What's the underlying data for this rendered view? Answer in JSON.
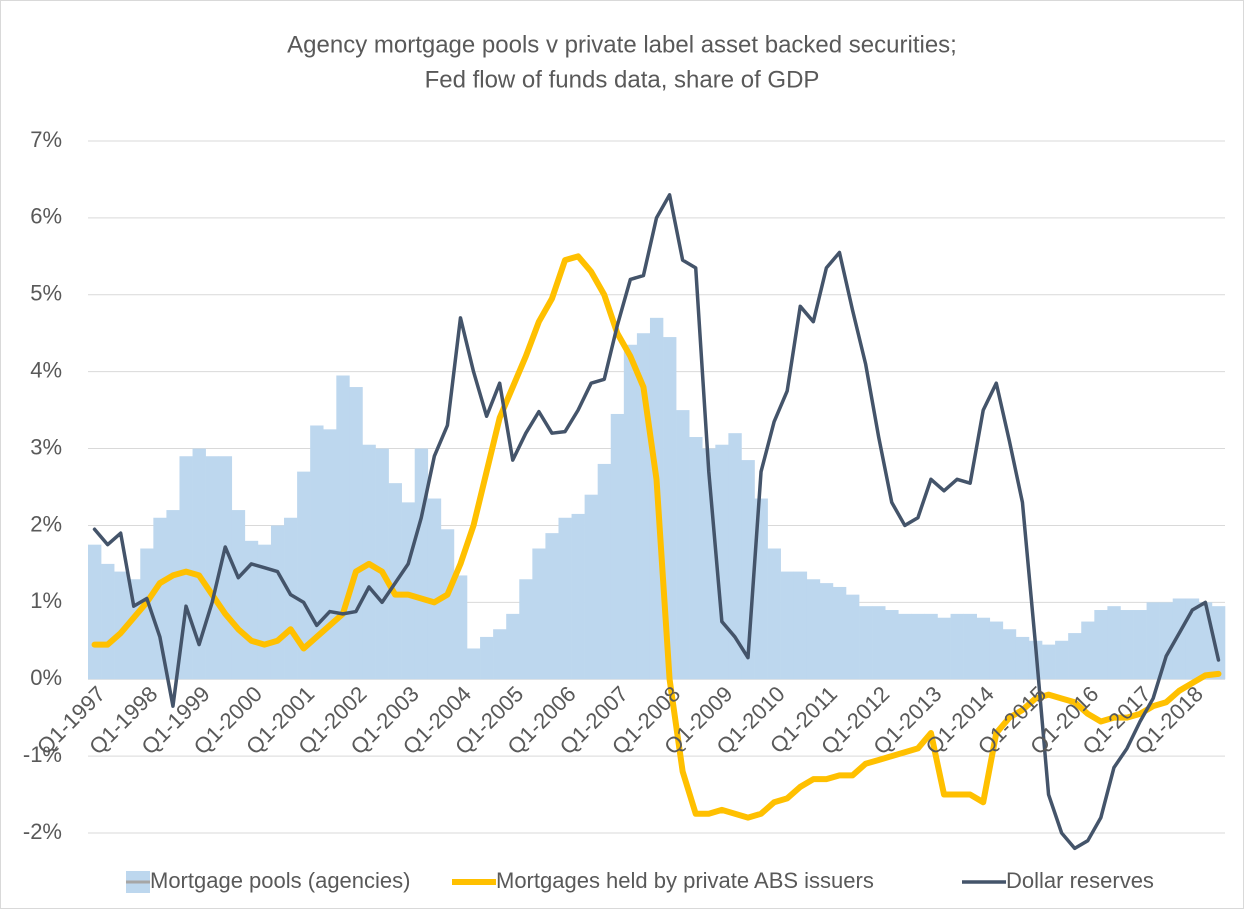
{
  "chart_data": {
    "type": "bar-line",
    "title": [
      "Agency mortgage pools v private label asset backed securities;",
      "Fed flow of funds data, share of GDP"
    ],
    "categories": [
      "Q1-1997",
      null,
      null,
      null,
      "Q1-1998",
      null,
      null,
      null,
      "Q1-1999",
      null,
      null,
      null,
      "Q1-2000",
      null,
      null,
      null,
      "Q1-2001",
      null,
      null,
      null,
      "Q1-2002",
      null,
      null,
      null,
      "Q1-2003",
      null,
      null,
      null,
      "Q1-2004",
      null,
      null,
      null,
      "Q1-2005",
      null,
      null,
      null,
      "Q1-2006",
      null,
      null,
      null,
      "Q1-2007",
      null,
      null,
      null,
      "Q1-2008",
      null,
      null,
      null,
      "Q1-2009",
      null,
      null,
      null,
      "Q1-2010",
      null,
      null,
      null,
      "Q1-2011",
      null,
      null,
      null,
      "Q1-2012",
      null,
      null,
      null,
      "Q1-2013",
      null,
      null,
      null,
      "Q1-2014",
      null,
      null,
      null,
      "Q1-2015",
      null,
      null,
      null,
      "Q1-2016",
      null,
      null,
      null,
      "Q1-2017",
      null,
      null,
      null,
      "Q1-2018",
      null,
      null
    ],
    "series": [
      {
        "name": "Mortgage pools (agencies)",
        "kind": "bar",
        "color": "#bdd7ee",
        "values": [
          1.75,
          1.5,
          1.4,
          1.3,
          1.7,
          2.1,
          2.2,
          2.9,
          3.0,
          2.9,
          2.9,
          2.2,
          1.8,
          1.75,
          2.0,
          2.1,
          2.7,
          3.3,
          3.25,
          3.95,
          3.8,
          3.05,
          3.0,
          2.55,
          2.3,
          3.0,
          2.35,
          1.95,
          1.35,
          0.4,
          0.55,
          0.65,
          0.85,
          1.3,
          1.7,
          1.9,
          2.1,
          2.15,
          2.4,
          2.8,
          3.45,
          4.35,
          4.5,
          4.7,
          4.45,
          3.5,
          3.15,
          3.0,
          3.05,
          3.2,
          2.85,
          2.35,
          1.7,
          1.4,
          1.4,
          1.3,
          1.25,
          1.2,
          1.1,
          0.95,
          0.95,
          0.9,
          0.85,
          0.85,
          0.85,
          0.8,
          0.85,
          0.85,
          0.8,
          0.75,
          0.65,
          0.55,
          0.5,
          0.45,
          0.5,
          0.6,
          0.75,
          0.9,
          0.95,
          0.9,
          0.9,
          1.0,
          1.0,
          1.05,
          1.05,
          1.0,
          0.95
        ]
      },
      {
        "name": "Mortgages held by private ABS issuers",
        "kind": "line",
        "color": "#ffc000",
        "values": [
          0.45,
          0.45,
          0.6,
          0.8,
          1.0,
          1.25,
          1.35,
          1.4,
          1.35,
          1.1,
          0.85,
          0.65,
          0.5,
          0.45,
          0.5,
          0.65,
          0.4,
          0.55,
          0.7,
          0.85,
          1.4,
          1.5,
          1.4,
          1.1,
          1.1,
          1.05,
          1.0,
          1.1,
          1.5,
          2.0,
          2.7,
          3.4,
          3.8,
          4.2,
          4.65,
          4.95,
          5.45,
          5.5,
          5.3,
          5.0,
          4.5,
          4.2,
          3.8,
          2.6,
          0.0,
          -1.2,
          -1.75,
          -1.75,
          -1.7,
          -1.75,
          -1.8,
          -1.75,
          -1.6,
          -1.55,
          -1.4,
          -1.3,
          -1.3,
          -1.25,
          -1.25,
          -1.1,
          -1.05,
          -1.0,
          -0.95,
          -0.9,
          -0.7,
          -1.5,
          -1.5,
          -1.5,
          -1.6,
          -0.7,
          -0.5,
          -0.4,
          -0.25,
          -0.2,
          -0.25,
          -0.3,
          -0.45,
          -0.55,
          -0.5,
          -0.5,
          -0.45,
          -0.35,
          -0.3,
          -0.15,
          -0.05,
          0.05,
          0.07
        ]
      },
      {
        "name": "Dollar reserves",
        "kind": "line",
        "color": "#44546a",
        "values": [
          1.95,
          1.75,
          1.9,
          0.95,
          1.05,
          0.55,
          -0.35,
          0.95,
          0.45,
          1.0,
          1.72,
          1.32,
          1.5,
          1.45,
          1.4,
          1.1,
          1.0,
          0.7,
          0.88,
          0.85,
          0.88,
          1.2,
          1.0,
          1.25,
          1.5,
          2.1,
          2.9,
          3.3,
          4.7,
          4.0,
          3.42,
          3.85,
          2.85,
          3.2,
          3.48,
          3.2,
          3.22,
          3.5,
          3.85,
          3.9,
          4.6,
          5.2,
          5.25,
          6.0,
          6.3,
          5.45,
          5.35,
          2.7,
          0.75,
          0.55,
          0.28,
          2.7,
          3.35,
          3.75,
          4.85,
          4.65,
          5.35,
          5.55,
          4.8,
          4.1,
          3.15,
          2.3,
          2.0,
          2.1,
          2.6,
          2.45,
          2.6,
          2.55,
          3.5,
          3.85,
          3.1,
          2.3,
          0.45,
          -1.5,
          -2.0,
          -2.2,
          -2.1,
          -1.8,
          -1.15,
          -0.9,
          -0.55,
          -0.25,
          0.3,
          0.6,
          0.9,
          1.0,
          0.25
        ]
      }
    ],
    "ylim": [
      -2,
      7
    ],
    "yticks": [
      {
        "value": -2,
        "label": "-2%"
      },
      {
        "value": -1,
        "label": "-1%"
      },
      {
        "value": 0,
        "label": "0%"
      },
      {
        "value": 1,
        "label": "1%"
      },
      {
        "value": 2,
        "label": "2%"
      },
      {
        "value": 3,
        "label": "3%"
      },
      {
        "value": 4,
        "label": "4%"
      },
      {
        "value": 5,
        "label": "5%"
      },
      {
        "value": 6,
        "label": "6%"
      },
      {
        "value": 7,
        "label": "7%"
      }
    ],
    "grid": true,
    "legend": "bottom"
  }
}
